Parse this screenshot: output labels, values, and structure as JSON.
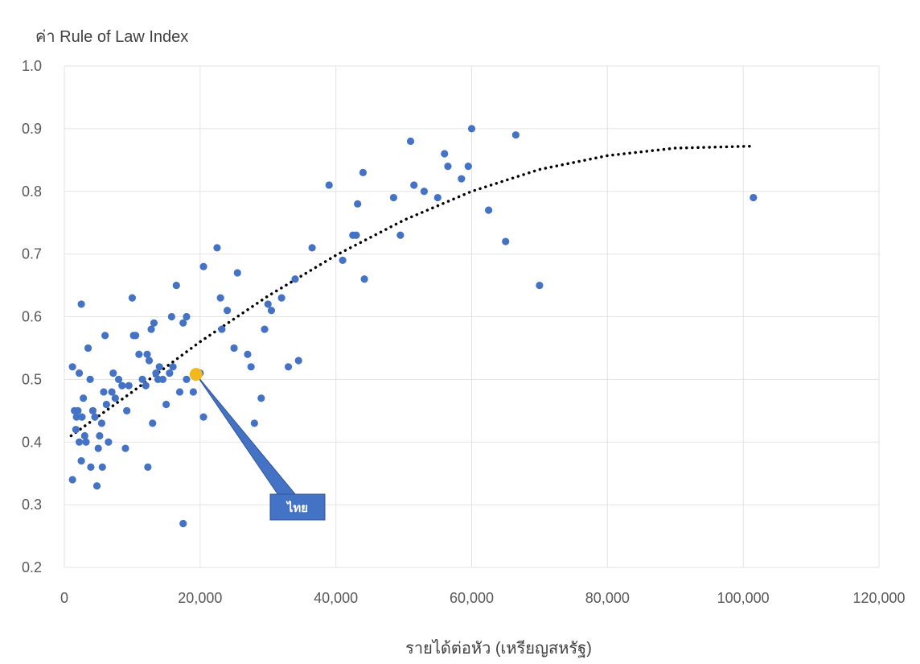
{
  "chart_data": {
    "type": "scatter",
    "title": "",
    "ylabel": "ค่า Rule of Law Index",
    "xlabel": "รายได้ต่อหัว (เหรียญสหรัฐ)",
    "xlim": [
      0,
      120000
    ],
    "ylim": [
      0.2,
      1.0
    ],
    "x_ticks": [
      0,
      20000,
      40000,
      60000,
      80000,
      100000,
      120000
    ],
    "x_tick_labels": [
      "0",
      "20,000",
      "40,000",
      "60,000",
      "80,000",
      "100,000",
      "120,000"
    ],
    "y_ticks": [
      0.2,
      0.3,
      0.4,
      0.5,
      0.6,
      0.7,
      0.8,
      0.9,
      1.0
    ],
    "y_tick_labels": [
      "0.2",
      "0.3",
      "0.4",
      "0.5",
      "0.6",
      "0.7",
      "0.8",
      "0.9",
      "1.0"
    ],
    "grid": true,
    "point_color": "#4472C4",
    "highlight_color": "#F2B81D",
    "trendline_color": "#000000",
    "callout_color": "#4472C4",
    "highlight": {
      "label": "ไทย",
      "x": 19400,
      "y": 0.508
    },
    "trendline": {
      "style": "dotted",
      "points": [
        [
          1000,
          0.41
        ],
        [
          10000,
          0.48
        ],
        [
          20000,
          0.56
        ],
        [
          30000,
          0.633
        ],
        [
          40000,
          0.698
        ],
        [
          50000,
          0.754
        ],
        [
          60000,
          0.8
        ],
        [
          70000,
          0.835
        ],
        [
          80000,
          0.857
        ],
        [
          90000,
          0.869
        ],
        [
          101000,
          0.872
        ]
      ]
    },
    "points": [
      [
        1200,
        0.52
      ],
      [
        1500,
        0.45
      ],
      [
        1200,
        0.34
      ],
      [
        1800,
        0.44
      ],
      [
        2000,
        0.45
      ],
      [
        2200,
        0.51
      ],
      [
        2500,
        0.62
      ],
      [
        2800,
        0.47
      ],
      [
        2600,
        0.44
      ],
      [
        3000,
        0.41
      ],
      [
        2500,
        0.37
      ],
      [
        3200,
        0.4
      ],
      [
        2200,
        0.4
      ],
      [
        1700,
        0.42
      ],
      [
        3500,
        0.55
      ],
      [
        3800,
        0.5
      ],
      [
        3900,
        0.36
      ],
      [
        4200,
        0.45
      ],
      [
        4500,
        0.44
      ],
      [
        4800,
        0.33
      ],
      [
        5000,
        0.39
      ],
      [
        5200,
        0.41
      ],
      [
        5500,
        0.43
      ],
      [
        5600,
        0.36
      ],
      [
        5800,
        0.48
      ],
      [
        6000,
        0.57
      ],
      [
        6200,
        0.46
      ],
      [
        6500,
        0.4
      ],
      [
        7000,
        0.48
      ],
      [
        7200,
        0.51
      ],
      [
        7500,
        0.47
      ],
      [
        8000,
        0.5
      ],
      [
        8500,
        0.49
      ],
      [
        9000,
        0.39
      ],
      [
        9200,
        0.45
      ],
      [
        9500,
        0.49
      ],
      [
        10000,
        0.63
      ],
      [
        10200,
        0.57
      ],
      [
        10500,
        0.57
      ],
      [
        11000,
        0.54
      ],
      [
        11500,
        0.5
      ],
      [
        12000,
        0.49
      ],
      [
        12200,
        0.54
      ],
      [
        12500,
        0.53
      ],
      [
        12300,
        0.36
      ],
      [
        12800,
        0.58
      ],
      [
        13000,
        0.43
      ],
      [
        13200,
        0.59
      ],
      [
        13500,
        0.51
      ],
      [
        13800,
        0.5
      ],
      [
        14000,
        0.52
      ],
      [
        14500,
        0.5
      ],
      [
        15000,
        0.46
      ],
      [
        15500,
        0.51
      ],
      [
        15800,
        0.6
      ],
      [
        16000,
        0.52
      ],
      [
        16500,
        0.65
      ],
      [
        17000,
        0.48
      ],
      [
        17500,
        0.59
      ],
      [
        18000,
        0.6
      ],
      [
        18000,
        0.5
      ],
      [
        17500,
        0.27
      ],
      [
        19000,
        0.48
      ],
      [
        20000,
        0.51
      ],
      [
        20500,
        0.68
      ],
      [
        20500,
        0.44
      ],
      [
        22500,
        0.71
      ],
      [
        23000,
        0.63
      ],
      [
        23200,
        0.58
      ],
      [
        24000,
        0.61
      ],
      [
        25000,
        0.55
      ],
      [
        25500,
        0.67
      ],
      [
        27000,
        0.54
      ],
      [
        27500,
        0.52
      ],
      [
        28000,
        0.43
      ],
      [
        29000,
        0.47
      ],
      [
        29500,
        0.58
      ],
      [
        30000,
        0.62
      ],
      [
        30500,
        0.61
      ],
      [
        32000,
        0.63
      ],
      [
        33000,
        0.52
      ],
      [
        34000,
        0.66
      ],
      [
        34500,
        0.53
      ],
      [
        36500,
        0.71
      ],
      [
        39000,
        0.81
      ],
      [
        41000,
        0.69
      ],
      [
        42500,
        0.73
      ],
      [
        43000,
        0.73
      ],
      [
        43200,
        0.78
      ],
      [
        44000,
        0.83
      ],
      [
        44200,
        0.66
      ],
      [
        48500,
        0.79
      ],
      [
        49500,
        0.73
      ],
      [
        51000,
        0.88
      ],
      [
        51500,
        0.81
      ],
      [
        53000,
        0.8
      ],
      [
        55000,
        0.79
      ],
      [
        56000,
        0.86
      ],
      [
        56500,
        0.84
      ],
      [
        58500,
        0.82
      ],
      [
        59500,
        0.84
      ],
      [
        60000,
        0.9
      ],
      [
        62500,
        0.77
      ],
      [
        65000,
        0.72
      ],
      [
        66500,
        0.89
      ],
      [
        70000,
        0.65
      ],
      [
        101500,
        0.79
      ]
    ]
  }
}
